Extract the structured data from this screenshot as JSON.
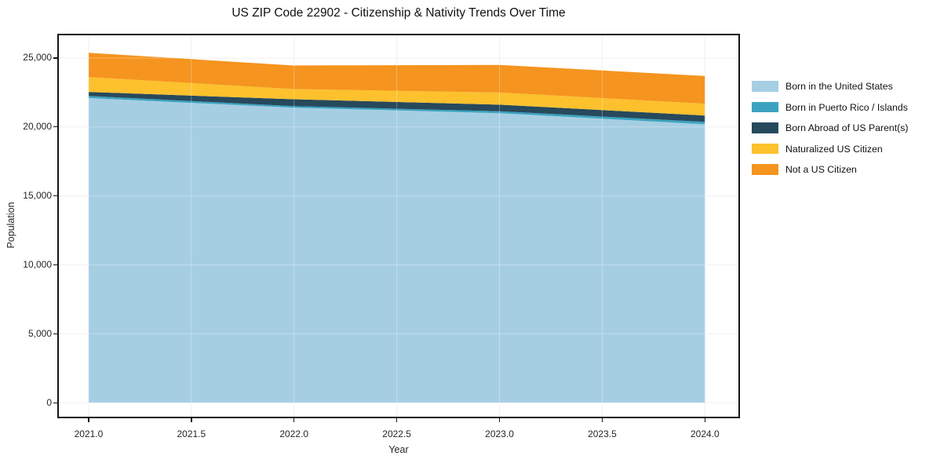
{
  "title": "US ZIP Code 22902 - Citizenship & Nativity Trends Over Time",
  "chart_data": {
    "type": "area",
    "stacked": true,
    "title": "US ZIP Code 22902 - Citizenship & Nativity Trends Over Time",
    "xlabel": "Year",
    "ylabel": "Population",
    "x": [
      2021,
      2022,
      2023,
      2024
    ],
    "series": [
      {
        "name": "Born in the United States",
        "color": "#a6cee3",
        "values": [
          22100,
          21400,
          21000,
          20200
        ]
      },
      {
        "name": "Born in Puerto Rico / Islands",
        "color": "#3ba3c0",
        "values": [
          150,
          110,
          140,
          170
        ]
      },
      {
        "name": "Born Abroad of US Parent(s)",
        "color": "#27495c",
        "values": [
          290,
          500,
          480,
          460
        ]
      },
      {
        "name": "Naturalized US Citizen",
        "color": "#fcc12d",
        "values": [
          1080,
          740,
          880,
          860
        ]
      },
      {
        "name": "Not a US Citizen",
        "color": "#f5941f",
        "values": [
          1760,
          1710,
          2000,
          2010
        ]
      }
    ],
    "totals": [
      25380,
      24460,
      24500,
      23700
    ],
    "x_ticks": {
      "values": [
        2021.0,
        2021.5,
        2022.0,
        2022.5,
        2023.0,
        2023.5,
        2024.0
      ],
      "labels": [
        "2021.0",
        "2021.5",
        "2022.0",
        "2022.5",
        "2023.0",
        "2023.5",
        "2024.0"
      ]
    },
    "y_ticks": {
      "values": [
        0,
        5000,
        10000,
        15000,
        20000,
        25000
      ],
      "labels": [
        "0",
        "5,000",
        "10,000",
        "15,000",
        "20,000",
        "25,000"
      ]
    },
    "xlim": [
      2020.855,
      2024.163
    ],
    "ylim": [
      -1019,
      26649
    ],
    "grid": true,
    "legend_position": "right",
    "grid_color": "#ececec",
    "grid_overlay_color": "rgba(255,255,255,0.3)",
    "spine_color": "#141414"
  }
}
